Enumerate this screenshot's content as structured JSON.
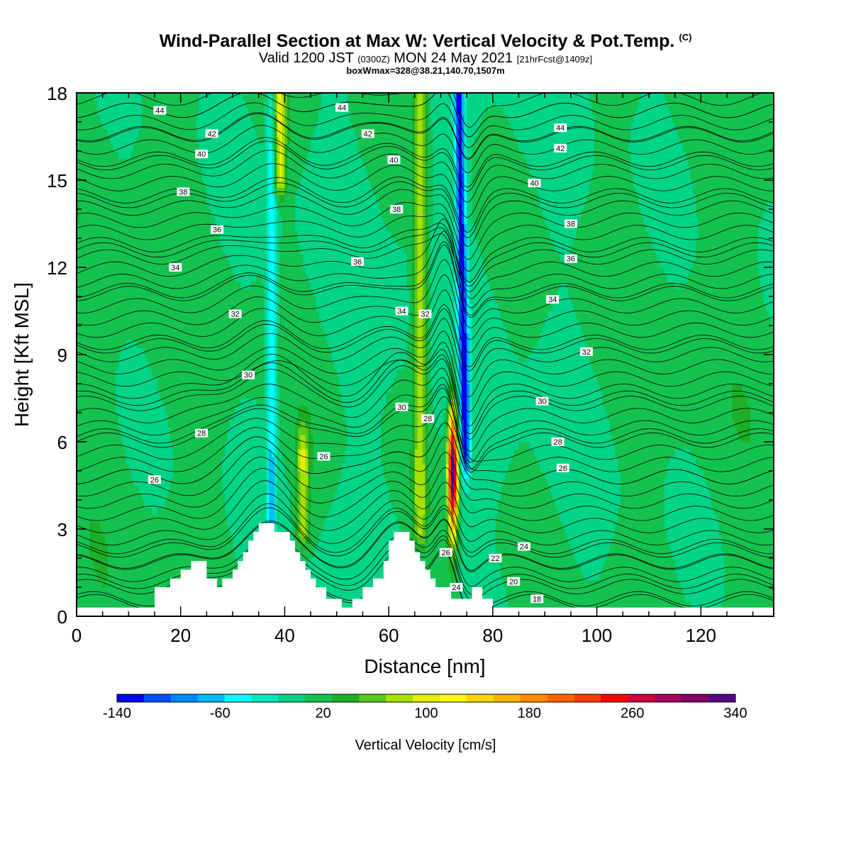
{
  "header": {
    "title": "Wind-Parallel Section at Max W: Vertical Velocity & Pot.Temp.",
    "title_mark": "(C)",
    "valid_prefix": "Valid 1200 JST",
    "valid_zulu": "(0300Z)",
    "valid_date": "MON 24 May 2021",
    "forecast": "[21hrFcst@1409z]",
    "box_info": "boxWmax=328@38.21,140.70,1507m"
  },
  "chart_data": {
    "type": "heatmap",
    "xlabel": "Distance [nm]",
    "ylabel": "Height [Kft MSL]",
    "xlim": [
      0,
      134
    ],
    "ylim": [
      0,
      18
    ],
    "x_ticks": [
      "0",
      "20",
      "40",
      "60",
      "80",
      "100",
      "120"
    ],
    "y_ticks": [
      "0",
      "3",
      "6",
      "9",
      "12",
      "15",
      "18"
    ],
    "colorbar": {
      "label": "Vertical Velocity [cm/s]",
      "tick_labels": [
        "-140",
        "-60",
        "20",
        "100",
        "180",
        "260",
        "340"
      ],
      "range": [
        -140,
        340
      ],
      "colors": [
        "#0000ff",
        "#0050ff",
        "#0088ff",
        "#00bbff",
        "#00ffff",
        "#00e8c0",
        "#00d488",
        "#14c250",
        "#1eaf26",
        "#56c81e",
        "#a6e000",
        "#e4f000",
        "#ffff00",
        "#ffd800",
        "#ffb400",
        "#ff8c00",
        "#ff6400",
        "#ff3c00",
        "#ff0000",
        "#d0003c",
        "#a8005a",
        "#840068",
        "#5a0088"
      ]
    },
    "updrafts": [
      {
        "center_nm": 72.3,
        "peak_cm_s": 328,
        "base_kft": 0.9,
        "top_kft": 8.3
      },
      {
        "center_nm": 66,
        "peak_cm_s": 75,
        "base_kft": 3.0,
        "top_kft": 18
      },
      {
        "center_nm": 39,
        "peak_cm_s": 90,
        "base_kft": 15,
        "top_kft": 18
      },
      {
        "center_nm": 43.5,
        "peak_cm_s": 80,
        "base_kft": 3.0,
        "top_kft": 5.5
      }
    ],
    "downdrafts": [
      {
        "center_nm": 74.3,
        "min_cm_s": -135,
        "base_kft": 6.0,
        "top_kft": 18
      },
      {
        "center_nm": 37.5,
        "min_cm_s": -65,
        "base_kft": 3.5,
        "top_kft": 18
      }
    ],
    "terrain_kft": [
      [
        0,
        0.3
      ],
      [
        15,
        0.3
      ],
      [
        15,
        1.0
      ],
      [
        18,
        1.0
      ],
      [
        18,
        1.3
      ],
      [
        20,
        1.3
      ],
      [
        20,
        1.6
      ],
      [
        22,
        1.6
      ],
      [
        22,
        1.9
      ],
      [
        25,
        1.9
      ],
      [
        25,
        1.3
      ],
      [
        27,
        1.3
      ],
      [
        27,
        1.0
      ],
      [
        28,
        1.0
      ],
      [
        28,
        1.3
      ],
      [
        30,
        1.3
      ],
      [
        30,
        1.6
      ],
      [
        31,
        1.6
      ],
      [
        31,
        1.9
      ],
      [
        32,
        1.9
      ],
      [
        32,
        2.2
      ],
      [
        33,
        2.2
      ],
      [
        33,
        2.6
      ],
      [
        34,
        2.6
      ],
      [
        34,
        2.9
      ],
      [
        35,
        2.9
      ],
      [
        35,
        3.2
      ],
      [
        38,
        3.2
      ],
      [
        38,
        2.9
      ],
      [
        41,
        2.9
      ],
      [
        41,
        2.6
      ],
      [
        42,
        2.6
      ],
      [
        42,
        2.2
      ],
      [
        43,
        2.2
      ],
      [
        43,
        1.9
      ],
      [
        44,
        1.9
      ],
      [
        44,
        1.6
      ],
      [
        45,
        1.6
      ],
      [
        45,
        1.3
      ],
      [
        46,
        1.3
      ],
      [
        46,
        1.0
      ],
      [
        48,
        1.0
      ],
      [
        48,
        0.6
      ],
      [
        51,
        0.6
      ],
      [
        51,
        0.3
      ],
      [
        53,
        0.3
      ],
      [
        53,
        0.6
      ],
      [
        55,
        0.6
      ],
      [
        55,
        1.0
      ],
      [
        57,
        1.0
      ],
      [
        57,
        1.3
      ],
      [
        59,
        1.3
      ],
      [
        59,
        1.9
      ],
      [
        60,
        1.9
      ],
      [
        60,
        2.6
      ],
      [
        61,
        2.6
      ],
      [
        61,
        2.9
      ],
      [
        64,
        2.9
      ],
      [
        64,
        2.6
      ],
      [
        65,
        2.6
      ],
      [
        65,
        2.2
      ],
      [
        66,
        2.2
      ],
      [
        66,
        1.9
      ],
      [
        67,
        1.9
      ],
      [
        67,
        1.6
      ],
      [
        68,
        1.6
      ],
      [
        68,
        1.3
      ],
      [
        69,
        1.3
      ],
      [
        69,
        1.0
      ],
      [
        72,
        1.0
      ],
      [
        72,
        0.6
      ],
      [
        76,
        0.6
      ],
      [
        76,
        1.0
      ],
      [
        78,
        1.0
      ],
      [
        78,
        0.6
      ],
      [
        80,
        0.6
      ],
      [
        80,
        0.3
      ],
      [
        134,
        0.3
      ]
    ],
    "theta_contours": [
      {
        "label": "18",
        "base_kft": 0.5
      },
      {
        "label": "20",
        "base_kft": 1.2
      },
      {
        "label": "22",
        "base_kft": 1.9
      },
      {
        "label": "24",
        "base_kft": 2.4
      },
      {
        "label": "26",
        "base_kft": 4.8
      },
      {
        "label": "28",
        "base_kft": 6.2
      },
      {
        "label": "30",
        "base_kft": 7.5
      },
      {
        "label": "32",
        "base_kft": 9.3
      },
      {
        "label": "34",
        "base_kft": 11.2
      },
      {
        "label": "36",
        "base_kft": 12.6
      },
      {
        "label": "38",
        "base_kft": 14.3
      },
      {
        "label": "40",
        "base_kft": 15.6
      },
      {
        "label": "42",
        "base_kft": 16.6
      },
      {
        "label": "44",
        "base_kft": 17.4
      }
    ],
    "contour_labels": [
      {
        "text": "44",
        "x_nm": 16,
        "y_kft": 17.4
      },
      {
        "text": "44",
        "x_nm": 51,
        "y_kft": 17.5
      },
      {
        "text": "44",
        "x_nm": 93,
        "y_kft": 16.8
      },
      {
        "text": "42",
        "x_nm": 26,
        "y_kft": 16.6
      },
      {
        "text": "42",
        "x_nm": 56,
        "y_kft": 16.6
      },
      {
        "text": "42",
        "x_nm": 93,
        "y_kft": 16.1
      },
      {
        "text": "40",
        "x_nm": 24,
        "y_kft": 15.9
      },
      {
        "text": "40",
        "x_nm": 61,
        "y_kft": 15.7
      },
      {
        "text": "40",
        "x_nm": 88,
        "y_kft": 14.9
      },
      {
        "text": "38",
        "x_nm": 20.5,
        "y_kft": 14.6
      },
      {
        "text": "38",
        "x_nm": 61.5,
        "y_kft": 14.0
      },
      {
        "text": "38",
        "x_nm": 95,
        "y_kft": 13.5
      },
      {
        "text": "36",
        "x_nm": 27,
        "y_kft": 13.3
      },
      {
        "text": "36",
        "x_nm": 54,
        "y_kft": 12.2
      },
      {
        "text": "36",
        "x_nm": 95,
        "y_kft": 12.3
      },
      {
        "text": "34",
        "x_nm": 19,
        "y_kft": 12.0
      },
      {
        "text": "34",
        "x_nm": 62.5,
        "y_kft": 10.5
      },
      {
        "text": "34",
        "x_nm": 91.5,
        "y_kft": 10.9
      },
      {
        "text": "32",
        "x_nm": 30.5,
        "y_kft": 10.4
      },
      {
        "text": "32",
        "x_nm": 67,
        "y_kft": 10.4
      },
      {
        "text": "32",
        "x_nm": 98,
        "y_kft": 9.1
      },
      {
        "text": "30",
        "x_nm": 33,
        "y_kft": 8.3
      },
      {
        "text": "30",
        "x_nm": 62.5,
        "y_kft": 7.2
      },
      {
        "text": "30",
        "x_nm": 89.5,
        "y_kft": 7.4
      },
      {
        "text": "28",
        "x_nm": 24,
        "y_kft": 6.3
      },
      {
        "text": "28",
        "x_nm": 67.5,
        "y_kft": 6.8
      },
      {
        "text": "28",
        "x_nm": 92.5,
        "y_kft": 6.0
      },
      {
        "text": "26",
        "x_nm": 15,
        "y_kft": 4.7
      },
      {
        "text": "26",
        "x_nm": 47.5,
        "y_kft": 5.5
      },
      {
        "text": "26",
        "x_nm": 93.5,
        "y_kft": 5.1
      },
      {
        "text": "26",
        "x_nm": 71,
        "y_kft": 2.2
      },
      {
        "text": "24",
        "x_nm": 86,
        "y_kft": 2.4
      },
      {
        "text": "24",
        "x_nm": 73,
        "y_kft": 1.0
      },
      {
        "text": "22",
        "x_nm": 80.5,
        "y_kft": 2.0
      },
      {
        "text": "20",
        "x_nm": 84,
        "y_kft": 1.2
      },
      {
        "text": "18",
        "x_nm": 88.5,
        "y_kft": 0.6
      }
    ]
  }
}
